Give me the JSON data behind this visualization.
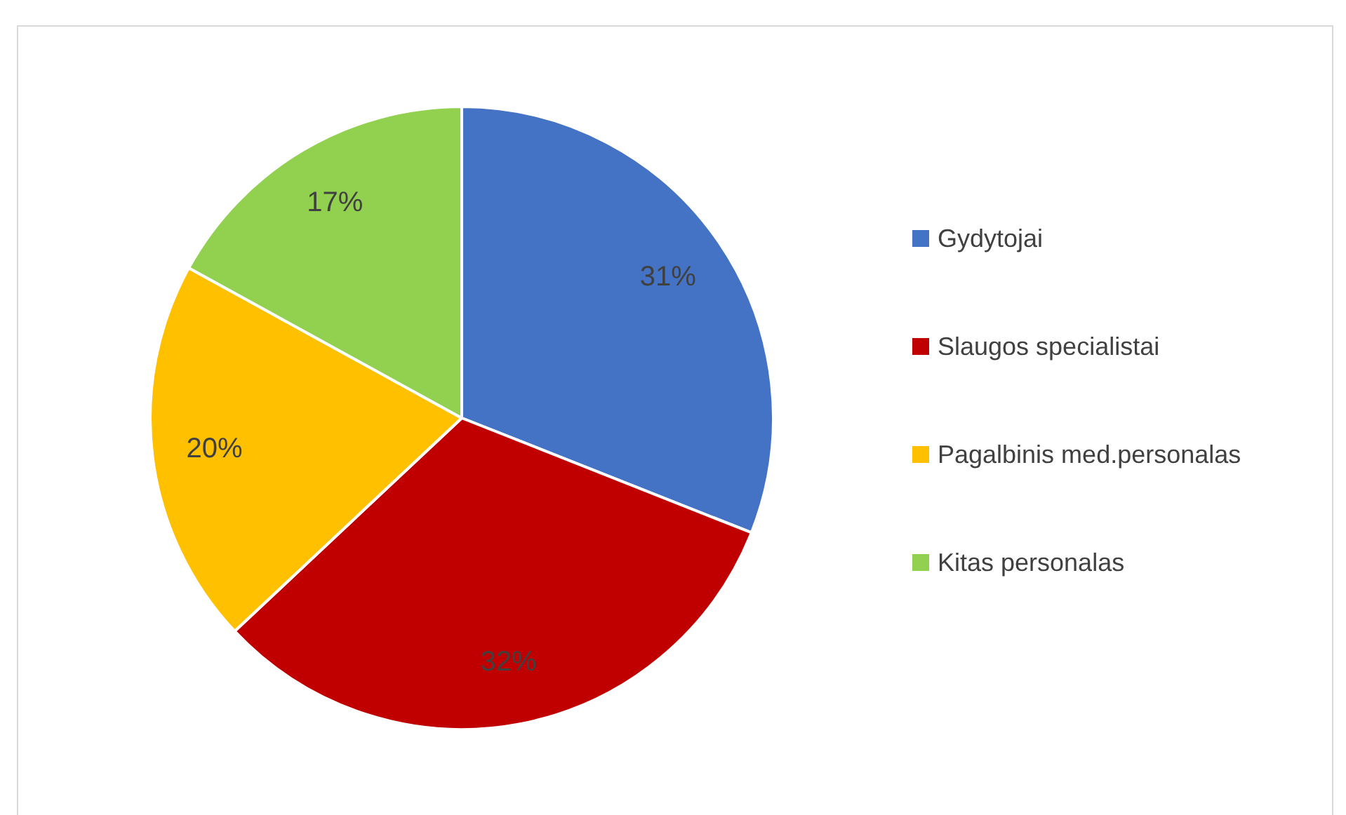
{
  "chart_data": {
    "type": "pie",
    "categories": [
      "Gydytojai",
      "Slaugos specialistai",
      "Pagalbinis med.personalas",
      "Kitas personalas"
    ],
    "values": [
      31,
      32,
      20,
      17
    ],
    "colors": [
      "#4472c4",
      "#c00000",
      "#ffc000",
      "#92d050"
    ],
    "value_labels": [
      "31%",
      "32%",
      "20%",
      "17%"
    ],
    "legend": "right"
  }
}
